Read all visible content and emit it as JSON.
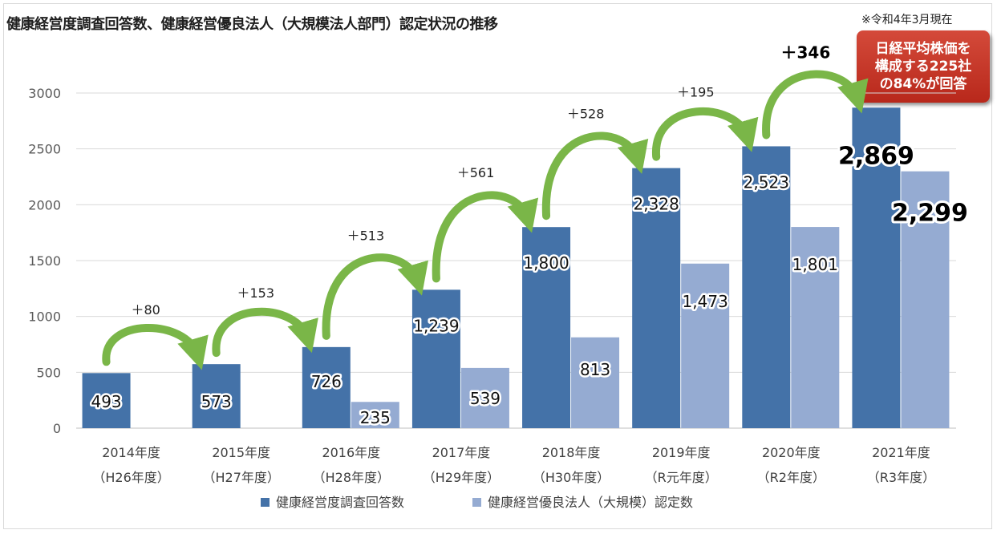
{
  "title": "健康経営度調査回答数、健康経営優良法人（大規模法人部門）認定状況の推移",
  "note": "※令和4年3月現在",
  "callout": {
    "lines": [
      "日経平均株価を",
      "構成する225社",
      "の84%が回答"
    ],
    "color": "#c0392b"
  },
  "chart_data": {
    "type": "bar",
    "categories": [
      "2014年度",
      "2015年度",
      "2016年度",
      "2017年度",
      "2018年度",
      "2019年度",
      "2020年度",
      "2021年度"
    ],
    "category_sublabels": [
      "（H26年度）",
      "（H27年度）",
      "（H28年度）",
      "（H29年度）",
      "（H30年度）",
      "（R元年度）",
      "（R2年度）",
      "（R3年度）"
    ],
    "series": [
      {
        "name": "健康経営度調査回答数",
        "color": "#4472a8",
        "values": [
          493,
          573,
          726,
          1239,
          1800,
          2328,
          2523,
          2869
        ],
        "labels": [
          "493",
          "573",
          "726",
          "1,239",
          "1,800",
          "2,328",
          "2,523",
          "2,869"
        ]
      },
      {
        "name": "健康経営優良法人（大規模）認定数",
        "color": "#95abd2",
        "values": [
          null,
          null,
          235,
          539,
          813,
          1473,
          1801,
          2299
        ],
        "labels": [
          "",
          "",
          "235",
          "539",
          "813",
          "1,473",
          "1,801",
          "2,299"
        ]
      }
    ],
    "increments": [
      "＋80",
      "＋153",
      "＋513",
      "＋561",
      "＋528",
      "＋195",
      "＋346"
    ],
    "arrow_color": "#7ab648",
    "y_ticks": [
      0,
      500,
      1000,
      1500,
      2000,
      2500,
      3000
    ],
    "ylim": [
      0,
      3000
    ],
    "grid": true,
    "legend_position": "bottom"
  }
}
